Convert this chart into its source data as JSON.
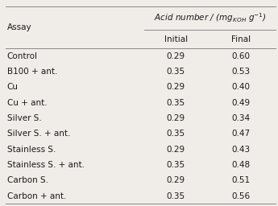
{
  "assay": [
    "Control",
    "B100 + ant.",
    "Cu",
    "Cu + ant.",
    "Silver S.",
    "Silver S. + ant.",
    "Stainless S.",
    "Stainless S. + ant.",
    "Carbon S.",
    "Carbon + ant."
  ],
  "initial": [
    "0.29",
    "0.35",
    "0.29",
    "0.35",
    "0.29",
    "0.35",
    "0.29",
    "0.35",
    "0.29",
    "0.35"
  ],
  "final": [
    "0.60",
    "0.53",
    "0.40",
    "0.49",
    "0.34",
    "0.47",
    "0.43",
    "0.48",
    "0.51",
    "0.56"
  ],
  "col_assay": "Assay",
  "col_initial": "Initial",
  "col_final": "Final",
  "header_text": "Acid number / (mg$_{\\mathregular{KOH}}$ g$^{-1}$)",
  "bg_color": "#f0ede8",
  "text_color": "#1a1a1a",
  "line_color": "#888888",
  "font_size": 7.5,
  "header_font_size": 7.5
}
